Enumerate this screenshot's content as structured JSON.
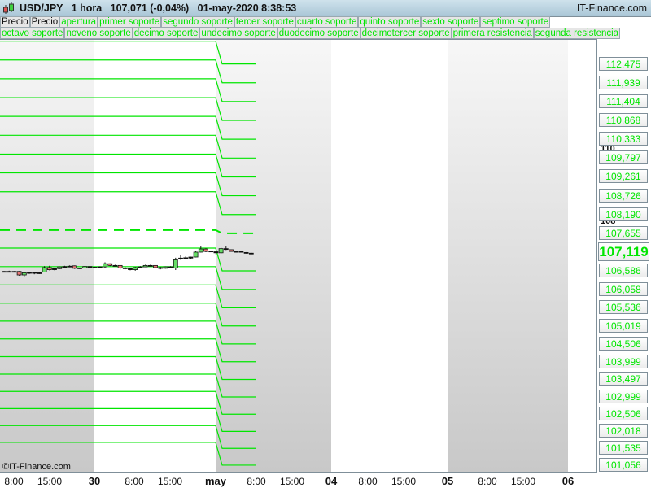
{
  "header": {
    "symbol": "USD/JPY",
    "timeframe": "1 hora",
    "price": "107,071 (-0,04%)",
    "datetime": "01-may-2020 8:38:53",
    "brand": "IT-Finance.com"
  },
  "legend": {
    "row1": [
      "Precio",
      "Precio",
      "apertura",
      "primer soporte",
      "segundo soporte",
      "tercer soporte",
      "cuarto soporte",
      "quinto soporte",
      "sexto soporte",
      "septimo soporte"
    ],
    "row2": [
      "octavo soporte",
      "noveno soporte",
      "decimo soporte",
      "undecimo soporte",
      "duodecimo soporte",
      "decimotercer soporte",
      "primera resistencia",
      "segunda resistencia"
    ]
  },
  "copyright": "©IT-Finance.com",
  "colors": {
    "level": "#00e600",
    "up": "#66dd66",
    "down": "#e87878",
    "shade": "#cccccc"
  },
  "chart_data": {
    "type": "candlestick",
    "title": "USD/JPY 1 hora",
    "current_price": "107,119",
    "current_price_value": 107.119,
    "price_gridlines": [
      "110",
      "108"
    ],
    "levels": [
      {
        "label": "112,475",
        "value": 112.475
      },
      {
        "label": "111,939",
        "value": 111.939
      },
      {
        "label": "111,404",
        "value": 111.404
      },
      {
        "label": "110,868",
        "value": 110.868
      },
      {
        "label": "110,333",
        "value": 110.333
      },
      {
        "label": "109,797",
        "value": 109.797
      },
      {
        "label": "109,261",
        "value": 109.261
      },
      {
        "label": "108,726",
        "value": 108.726
      },
      {
        "label": "108,190",
        "value": 108.19
      },
      {
        "label": "107,655",
        "value": 107.655,
        "style": "dashed"
      },
      {
        "label": "106,586",
        "value": 106.586
      },
      {
        "label": "106,058",
        "value": 106.058
      },
      {
        "label": "105,536",
        "value": 105.536
      },
      {
        "label": "105,019",
        "value": 105.019
      },
      {
        "label": "104,506",
        "value": 104.506
      },
      {
        "label": "103,999",
        "value": 103.999
      },
      {
        "label": "103,497",
        "value": 103.497
      },
      {
        "label": "102,999",
        "value": 102.999
      },
      {
        "label": "102,506",
        "value": 102.506
      },
      {
        "label": "102,018",
        "value": 102.018
      },
      {
        "label": "101,535",
        "value": 101.535
      },
      {
        "label": "101,056",
        "value": 101.056
      }
    ],
    "x_ticks": [
      "8:00",
      "15:00",
      "30",
      "8:00",
      "15:00",
      "may",
      "8:00",
      "15:00",
      "04",
      "8:00",
      "15:00",
      "05",
      "8:00",
      "15:00",
      "06"
    ],
    "candles": [
      [
        106.56,
        106.58,
        106.54,
        106.57
      ],
      [
        106.57,
        106.59,
        106.55,
        106.56
      ],
      [
        106.56,
        106.58,
        106.54,
        106.57
      ],
      [
        106.57,
        106.58,
        106.45,
        106.47
      ],
      [
        106.47,
        106.55,
        106.43,
        106.53
      ],
      [
        106.53,
        106.56,
        106.5,
        106.54
      ],
      [
        106.54,
        106.56,
        106.49,
        106.52
      ],
      [
        106.52,
        106.54,
        106.5,
        106.53
      ],
      [
        106.55,
        106.72,
        106.54,
        106.68
      ],
      [
        106.68,
        106.73,
        106.6,
        106.62
      ],
      [
        106.62,
        106.67,
        106.6,
        106.65
      ],
      [
        106.65,
        106.71,
        106.64,
        106.7
      ],
      [
        106.7,
        106.73,
        106.68,
        106.71
      ],
      [
        106.71,
        106.74,
        106.69,
        106.72
      ],
      [
        106.73,
        106.74,
        106.64,
        106.66
      ],
      [
        106.66,
        106.68,
        106.64,
        106.67
      ],
      [
        106.67,
        106.72,
        106.66,
        106.71
      ],
      [
        106.71,
        106.72,
        106.67,
        106.69
      ],
      [
        106.68,
        106.7,
        106.66,
        106.69
      ],
      [
        106.7,
        106.71,
        106.68,
        106.69
      ],
      [
        106.7,
        106.83,
        106.68,
        106.79
      ],
      [
        106.79,
        106.8,
        106.72,
        106.74
      ],
      [
        106.74,
        106.76,
        106.72,
        106.74
      ],
      [
        106.74,
        106.75,
        106.62,
        106.67
      ],
      [
        106.67,
        106.69,
        106.63,
        106.65
      ],
      [
        106.65,
        106.67,
        106.6,
        106.62
      ],
      [
        106.62,
        106.7,
        106.59,
        106.68
      ],
      [
        106.68,
        106.72,
        106.66,
        106.7
      ],
      [
        106.7,
        106.76,
        106.69,
        106.74
      ],
      [
        106.74,
        106.76,
        106.72,
        106.74
      ],
      [
        106.74,
        106.75,
        106.66,
        106.68
      ],
      [
        106.68,
        106.7,
        106.63,
        106.66
      ],
      [
        106.66,
        106.71,
        106.65,
        106.7
      ],
      [
        106.7,
        106.72,
        106.67,
        106.68
      ],
      [
        106.67,
        106.96,
        106.61,
        106.9
      ],
      [
        106.93,
        107.05,
        106.9,
        106.95
      ],
      [
        106.95,
        107.0,
        106.91,
        106.96
      ],
      [
        106.95,
        106.99,
        106.93,
        106.98
      ],
      [
        106.98,
        107.15,
        106.97,
        107.12
      ],
      [
        107.12,
        107.28,
        107.11,
        107.21
      ],
      [
        107.21,
        107.23,
        107.12,
        107.14
      ],
      [
        107.14,
        107.16,
        107.12,
        107.15
      ],
      [
        107.13,
        107.15,
        107.05,
        107.1
      ],
      [
        107.1,
        107.25,
        107.08,
        107.22
      ],
      [
        107.22,
        107.28,
        107.18,
        107.2
      ],
      [
        107.19,
        107.2,
        107.13,
        107.14
      ],
      [
        107.14,
        107.16,
        107.12,
        107.14
      ],
      [
        107.14,
        107.15,
        107.11,
        107.12
      ],
      [
        107.11,
        107.12,
        107.08,
        107.09
      ],
      [
        107.09,
        107.1,
        107.06,
        107.08
      ]
    ]
  }
}
